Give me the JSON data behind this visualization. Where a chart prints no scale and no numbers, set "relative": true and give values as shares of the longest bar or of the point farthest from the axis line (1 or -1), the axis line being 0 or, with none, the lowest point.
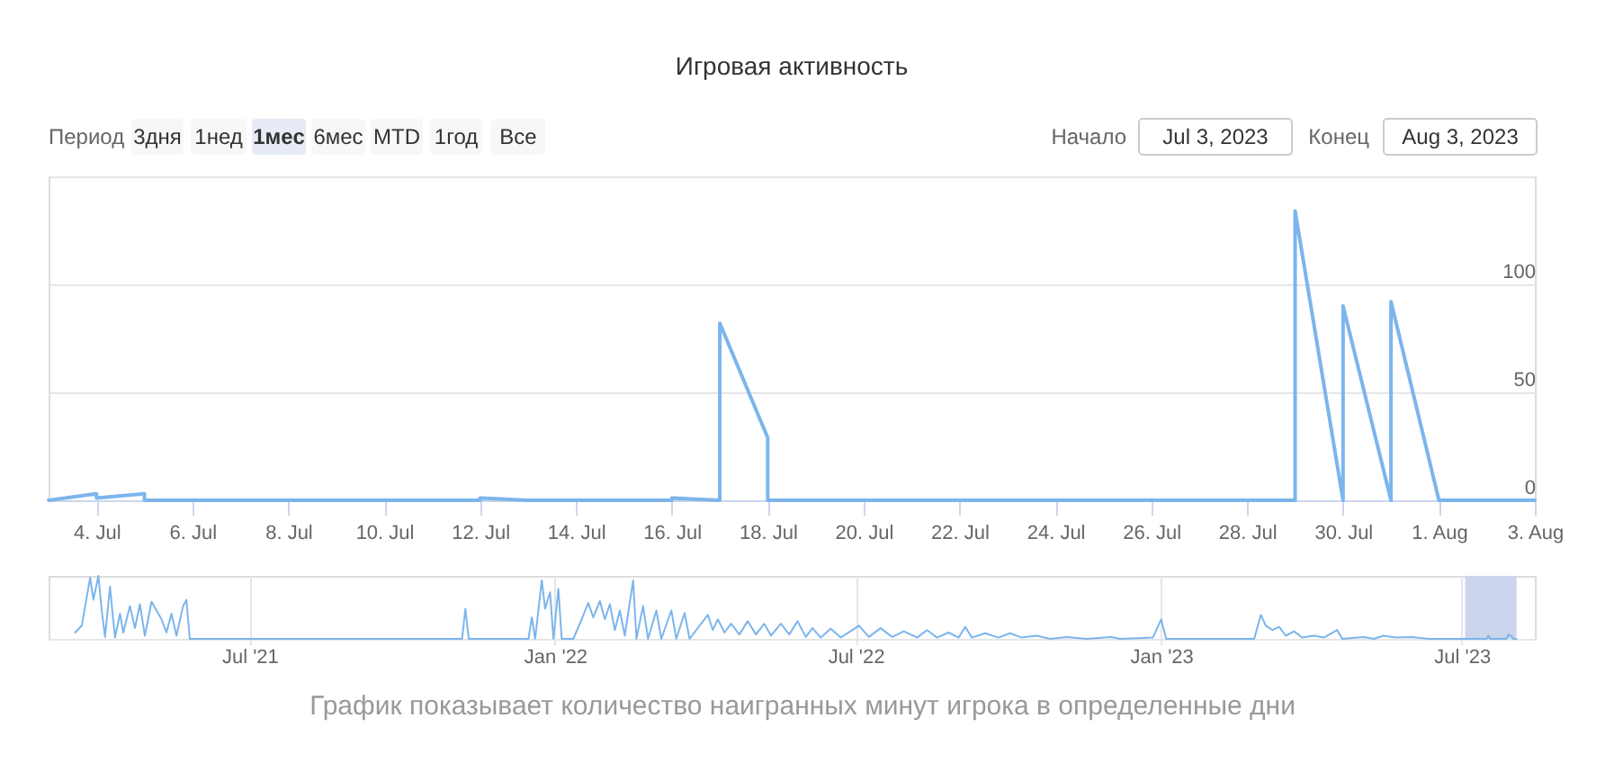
{
  "chart_data": [
    {
      "type": "line",
      "title": "Игровая активность",
      "x": [
        "2023-07-03",
        "2023-07-04",
        "2023-07-04",
        "2023-07-05",
        "2023-07-05",
        "2023-07-12",
        "2023-07-12",
        "2023-07-13",
        "2023-07-16",
        "2023-07-16",
        "2023-07-17",
        "2023-07-17",
        "2023-07-18",
        "2023-07-18",
        "2023-07-29",
        "2023-07-29",
        "2023-07-30",
        "2023-07-30",
        "2023-07-31",
        "2023-07-31",
        "2023-08-01",
        "2023-08-03"
      ],
      "series": [
        {
          "color": "#7cb5ec",
          "values": [
            0,
            3,
            1,
            3,
            0,
            0,
            1,
            0,
            0,
            1,
            0,
            82,
            29,
            0,
            0,
            134,
            0,
            90,
            0,
            92,
            0,
            0
          ]
        }
      ],
      "xlim": [
        "2023-07-03",
        "2023-08-03"
      ],
      "xticks": [
        {
          "value": "2023-07-04",
          "label": "4. Jul"
        },
        {
          "value": "2023-07-06",
          "label": "6. Jul"
        },
        {
          "value": "2023-07-08",
          "label": "8. Jul"
        },
        {
          "value": "2023-07-10",
          "label": "10. Jul"
        },
        {
          "value": "2023-07-12",
          "label": "12. Jul"
        },
        {
          "value": "2023-07-14",
          "label": "14. Jul"
        },
        {
          "value": "2023-07-16",
          "label": "16. Jul"
        },
        {
          "value": "2023-07-18",
          "label": "18. Jul"
        },
        {
          "value": "2023-07-20",
          "label": "20. Jul"
        },
        {
          "value": "2023-07-22",
          "label": "22. Jul"
        },
        {
          "value": "2023-07-24",
          "label": "24. Jul"
        },
        {
          "value": "2023-07-26",
          "label": "26. Jul"
        },
        {
          "value": "2023-07-28",
          "label": "28. Jul"
        },
        {
          "value": "2023-07-30",
          "label": "30. Jul"
        },
        {
          "value": "2023-08-01",
          "label": "1. Aug"
        },
        {
          "value": "2023-08-03",
          "label": "3. Aug"
        }
      ],
      "ylim": [
        0,
        150
      ],
      "yticks": [
        0,
        50,
        100,
        {
          "value": 150,
          "label": null
        }
      ],
      "grid": "y",
      "annotations": [
        "Период",
        "3дня",
        "1нед",
        "1мес",
        "6мес",
        "MTD",
        "1год",
        "Все",
        "Начало",
        "Jul 3, 2023",
        "Конец",
        "Aug 3, 2023"
      ]
    },
    {
      "type": "line",
      "relative": true,
      "x": [
        "2021-03-18",
        "2021-03-22",
        "2021-03-27",
        "2021-03-29",
        "2021-04-01",
        "2021-04-03",
        "2021-04-05",
        "2021-04-08",
        "2021-04-10",
        "2021-04-11",
        "2021-04-14",
        "2021-04-16",
        "2021-04-20",
        "2021-04-23",
        "2021-04-26",
        "2021-04-29",
        "2021-05-03",
        "2021-05-06",
        "2021-05-09",
        "2021-05-12",
        "2021-05-15",
        "2021-05-18",
        "2021-05-22",
        "2021-05-24",
        "2021-05-26",
        "2021-11-06",
        "2021-11-08",
        "2021-11-10",
        "2021-12-16",
        "2021-12-18",
        "2021-12-20",
        "2021-12-24",
        "2021-12-26",
        "2021-12-29",
        "2021-12-31",
        "2022-01-03",
        "2022-01-05",
        "2022-01-12",
        "2022-01-17",
        "2022-01-21",
        "2022-01-24",
        "2022-01-28",
        "2022-01-31",
        "2022-02-03",
        "2022-02-06",
        "2022-02-09",
        "2022-02-12",
        "2022-02-17",
        "2022-02-19",
        "2022-02-23",
        "2022-02-26",
        "2022-03-03",
        "2022-03-06",
        "2022-03-12",
        "2022-03-15",
        "2022-03-20",
        "2022-03-23",
        "2022-04-03",
        "2022-04-06",
        "2022-04-09",
        "2022-04-13",
        "2022-04-17",
        "2022-04-22",
        "2022-04-27",
        "2022-05-02",
        "2022-05-07",
        "2022-05-11",
        "2022-05-17",
        "2022-05-22",
        "2022-05-27",
        "2022-06-01",
        "2022-06-05",
        "2022-06-10",
        "2022-06-16",
        "2022-06-22",
        "2022-07-03",
        "2022-07-09",
        "2022-07-16",
        "2022-07-23",
        "2022-07-30",
        "2022-08-07",
        "2022-08-13",
        "2022-08-19",
        "2022-08-26",
        "2022-09-01",
        "2022-09-05",
        "2022-09-09",
        "2022-09-17",
        "2022-09-25",
        "2022-10-02",
        "2022-10-09",
        "2022-10-18",
        "2022-10-26",
        "2022-11-05",
        "2022-11-17",
        "2022-12-02",
        "2022-12-07",
        "2022-12-27",
        "2023-01-01",
        "2023-01-04",
        "2023-02-26",
        "2023-03-02",
        "2023-03-05",
        "2023-03-09",
        "2023-03-13",
        "2023-03-17",
        "2023-03-22",
        "2023-03-27",
        "2023-04-03",
        "2023-04-09",
        "2023-04-17",
        "2023-04-20",
        "2023-05-03",
        "2023-05-09",
        "2023-05-15",
        "2023-05-22",
        "2023-06-01",
        "2023-06-11",
        "2023-07-16",
        "2023-07-17",
        "2023-07-18",
        "2023-07-28",
        "2023-07-29",
        "2023-07-30",
        "2023-07-31",
        "2023-08-01",
        "2023-08-03"
      ],
      "series": [
        {
          "color": "#7cb5ec",
          "values": [
            0.1,
            0.21,
            0.97,
            0.62,
            1,
            0.45,
            0.03,
            0.83,
            0.28,
            0.02,
            0.4,
            0.1,
            0.52,
            0.17,
            0.55,
            0.05,
            0.59,
            0.45,
            0.31,
            0.1,
            0.4,
            0.05,
            0.52,
            0.62,
            0,
            0,
            0.48,
            0,
            0,
            0.34,
            0,
            0.93,
            0.48,
            0.74,
            0,
            0.79,
            0,
            0,
            0.31,
            0.57,
            0.34,
            0.6,
            0.31,
            0.55,
            0.14,
            0.45,
            0.05,
            0.93,
            0,
            0.52,
            0,
            0.45,
            0,
            0.45,
            0,
            0.41,
            0,
            0.38,
            0.14,
            0.31,
            0.1,
            0.24,
            0.07,
            0.28,
            0.07,
            0.24,
            0.05,
            0.24,
            0.07,
            0.28,
            0.03,
            0.17,
            0.02,
            0.16,
            0.02,
            0.21,
            0.03,
            0.17,
            0.03,
            0.12,
            0.02,
            0.14,
            0.02,
            0.1,
            0.02,
            0.19,
            0.02,
            0.09,
            0.02,
            0.09,
            0.02,
            0.05,
            0,
            0.03,
            0,
            0.03,
            0,
            0.02,
            0.31,
            0,
            0,
            0.38,
            0.21,
            0.14,
            0.19,
            0.05,
            0.12,
            0.02,
            0.05,
            0.02,
            0.14,
            0,
            0.03,
            0,
            0.05,
            0.02,
            0.03,
            0,
            0,
            0.05,
            0,
            0,
            0.07,
            0.05,
            0.05,
            0,
            0
          ]
        }
      ],
      "xlim": [
        "2021-03-02",
        "2023-08-14"
      ],
      "xticks": [
        {
          "value": "2021-07-01",
          "label": "Jul '21"
        },
        {
          "value": "2022-01-01",
          "label": "Jan '22"
        },
        {
          "value": "2022-07-01",
          "label": "Jul '22"
        },
        {
          "value": "2023-01-01",
          "label": "Jan '23"
        },
        {
          "value": "2023-07-01",
          "label": "Jul '23"
        }
      ],
      "grid": "x",
      "bands": [
        {
          "axis": "x",
          "from": "2023-07-03",
          "to": "2023-08-03",
          "color": "#ccd5ec"
        }
      ],
      "annotations": [
        "График показывает количество наигранных минут игрока в определенные дни"
      ]
    }
  ]
}
